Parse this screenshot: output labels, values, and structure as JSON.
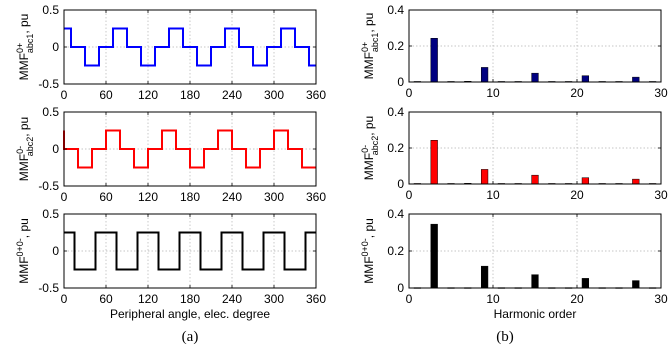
{
  "figure": {
    "caption_a": "(a)",
    "caption_b": "(b)"
  },
  "chart_data": [
    {
      "id": "a1",
      "type": "line",
      "ylabel_pre": "MMF",
      "ylabel_sup": "0+",
      "ylabel_sub": "abc1",
      "ylabel_post": ", pu",
      "xlabel": "",
      "xlim": [
        0,
        360
      ],
      "ylim": [
        -0.5,
        0.5
      ],
      "xticks": [
        0,
        60,
        120,
        180,
        240,
        300,
        360
      ],
      "yticks": [
        -0.5,
        0,
        0.5
      ],
      "yticklabels": [
        "-0.5",
        "0",
        "0.5"
      ],
      "grid": true,
      "color": "#0000ff",
      "points": [
        [
          0,
          0.25
        ],
        [
          10,
          0.25
        ],
        [
          10,
          0
        ],
        [
          30,
          0
        ],
        [
          30,
          -0.25
        ],
        [
          50,
          -0.25
        ],
        [
          50,
          0
        ],
        [
          70,
          0
        ],
        [
          70,
          0.25
        ],
        [
          90,
          0.25
        ],
        [
          90,
          0
        ],
        [
          110,
          0
        ],
        [
          110,
          -0.25
        ],
        [
          130,
          -0.25
        ],
        [
          130,
          0
        ],
        [
          150,
          0
        ],
        [
          150,
          0.25
        ],
        [
          170,
          0.25
        ],
        [
          170,
          0
        ],
        [
          190,
          0
        ],
        [
          190,
          -0.25
        ],
        [
          210,
          -0.25
        ],
        [
          210,
          0
        ],
        [
          230,
          0
        ],
        [
          230,
          0.25
        ],
        [
          250,
          0.25
        ],
        [
          250,
          0
        ],
        [
          270,
          0
        ],
        [
          270,
          -0.25
        ],
        [
          290,
          -0.25
        ],
        [
          290,
          0
        ],
        [
          310,
          0
        ],
        [
          310,
          0.25
        ],
        [
          330,
          0.25
        ],
        [
          330,
          0
        ],
        [
          350,
          0
        ],
        [
          350,
          -0.25
        ],
        [
          360,
          -0.25
        ]
      ]
    },
    {
      "id": "a2",
      "type": "line",
      "ylabel_pre": "MMF",
      "ylabel_sup": "0-",
      "ylabel_sub": "abc2",
      "ylabel_post": ", pu",
      "xlabel": "",
      "xlim": [
        0,
        360
      ],
      "ylim": [
        -0.5,
        0.5
      ],
      "xticks": [
        0,
        60,
        120,
        180,
        240,
        300,
        360
      ],
      "yticks": [
        -0.5,
        0,
        0.5
      ],
      "yticklabels": [
        "-0.5",
        "0",
        "0.5"
      ],
      "grid": true,
      "color": "#ff0000",
      "points": [
        [
          0,
          0.25
        ],
        [
          0,
          0
        ],
        [
          20,
          0
        ],
        [
          20,
          -0.25
        ],
        [
          40,
          -0.25
        ],
        [
          40,
          0
        ],
        [
          60,
          0
        ],
        [
          60,
          0.25
        ],
        [
          80,
          0.25
        ],
        [
          80,
          0
        ],
        [
          100,
          0
        ],
        [
          100,
          -0.25
        ],
        [
          120,
          -0.25
        ],
        [
          120,
          0
        ],
        [
          140,
          0
        ],
        [
          140,
          0.25
        ],
        [
          160,
          0.25
        ],
        [
          160,
          0
        ],
        [
          180,
          0
        ],
        [
          180,
          -0.25
        ],
        [
          200,
          -0.25
        ],
        [
          200,
          0
        ],
        [
          220,
          0
        ],
        [
          220,
          0.25
        ],
        [
          240,
          0.25
        ],
        [
          240,
          0
        ],
        [
          260,
          0
        ],
        [
          260,
          -0.25
        ],
        [
          280,
          -0.25
        ],
        [
          280,
          0
        ],
        [
          300,
          0
        ],
        [
          300,
          0.25
        ],
        [
          320,
          0.25
        ],
        [
          320,
          0
        ],
        [
          340,
          0
        ],
        [
          340,
          -0.25
        ],
        [
          360,
          -0.25
        ]
      ]
    },
    {
      "id": "a3",
      "type": "line",
      "ylabel_pre": "MMF",
      "ylabel_sup": "0+0-",
      "ylabel_sub": "",
      "ylabel_post": ", pu",
      "xlabel": "Peripheral angle, elec. degree",
      "xlim": [
        0,
        360
      ],
      "ylim": [
        -0.5,
        0.5
      ],
      "xticks": [
        0,
        60,
        120,
        180,
        240,
        300,
        360
      ],
      "yticks": [
        -0.5,
        0,
        0.5
      ],
      "yticklabels": [
        "-0.5",
        "0",
        "0.5"
      ],
      "grid": true,
      "color": "#000000",
      "points": [
        [
          0,
          0.25
        ],
        [
          15,
          0.25
        ],
        [
          15,
          -0.25
        ],
        [
          45,
          -0.25
        ],
        [
          45,
          0.25
        ],
        [
          75,
          0.25
        ],
        [
          75,
          -0.25
        ],
        [
          105,
          -0.25
        ],
        [
          105,
          0.25
        ],
        [
          135,
          0.25
        ],
        [
          135,
          -0.25
        ],
        [
          165,
          -0.25
        ],
        [
          165,
          0.25
        ],
        [
          195,
          0.25
        ],
        [
          195,
          -0.25
        ],
        [
          225,
          -0.25
        ],
        [
          225,
          0.25
        ],
        [
          255,
          0.25
        ],
        [
          255,
          -0.25
        ],
        [
          285,
          -0.25
        ],
        [
          285,
          0.25
        ],
        [
          315,
          0.25
        ],
        [
          315,
          -0.25
        ],
        [
          345,
          -0.25
        ],
        [
          345,
          0.25
        ],
        [
          360,
          0.25
        ]
      ]
    },
    {
      "id": "b1",
      "type": "bar",
      "ylabel_pre": "MMF",
      "ylabel_sup": "0+",
      "ylabel_sub": "abc1",
      "ylabel_post": ", pu",
      "xlabel": "",
      "xlim": [
        0,
        30
      ],
      "ylim": [
        0,
        0.4
      ],
      "xticks": [
        0,
        10,
        20,
        30
      ],
      "yticks": [
        0,
        0.2,
        0.4
      ],
      "yticklabels": [
        "0",
        "0.2",
        "0.4"
      ],
      "grid": true,
      "color": "#000080",
      "x": [
        1,
        3,
        5,
        7,
        9,
        11,
        13,
        15,
        17,
        19,
        21,
        23,
        25,
        27,
        29
      ],
      "values": [
        0.003,
        0.243,
        0.003,
        0.004,
        0.081,
        0.003,
        0.003,
        0.049,
        0.003,
        0.003,
        0.035,
        0.003,
        0.003,
        0.027,
        0.003
      ]
    },
    {
      "id": "b2",
      "type": "bar",
      "ylabel_pre": "MMF",
      "ylabel_sup": "0-",
      "ylabel_sub": "abc2",
      "ylabel_post": ", pu",
      "xlabel": "",
      "xlim": [
        0,
        30
      ],
      "ylim": [
        0,
        0.4
      ],
      "xticks": [
        0,
        10,
        20,
        30
      ],
      "yticks": [
        0,
        0.2,
        0.4
      ],
      "yticklabels": [
        "0",
        "0.2",
        "0.4"
      ],
      "grid": true,
      "color": "#ff0000",
      "x": [
        1,
        3,
        5,
        7,
        9,
        11,
        13,
        15,
        17,
        19,
        21,
        23,
        25,
        27,
        29
      ],
      "values": [
        0.003,
        0.243,
        0.003,
        0.004,
        0.081,
        0.003,
        0.003,
        0.049,
        0.003,
        0.003,
        0.035,
        0.003,
        0.003,
        0.027,
        0.003
      ]
    },
    {
      "id": "b3",
      "type": "bar",
      "ylabel_pre": "MMF",
      "ylabel_sup": "0+0-",
      "ylabel_sub": "",
      "ylabel_post": ", pu",
      "xlabel": "Harmonic order",
      "xlim": [
        0,
        30
      ],
      "ylim": [
        0,
        0.4
      ],
      "xticks": [
        0,
        10,
        20,
        30
      ],
      "yticks": [
        0,
        0.2,
        0.4
      ],
      "yticklabels": [
        "0",
        "0.2",
        "0.4"
      ],
      "grid": true,
      "color": "#000000",
      "x": [
        1,
        3,
        5,
        7,
        9,
        11,
        13,
        15,
        17,
        19,
        21,
        23,
        25,
        27,
        29
      ],
      "values": [
        0.002,
        0.345,
        0.002,
        0.002,
        0.118,
        0.002,
        0.002,
        0.072,
        0.002,
        0.002,
        0.052,
        0.002,
        0.002,
        0.04,
        0.002
      ]
    }
  ]
}
